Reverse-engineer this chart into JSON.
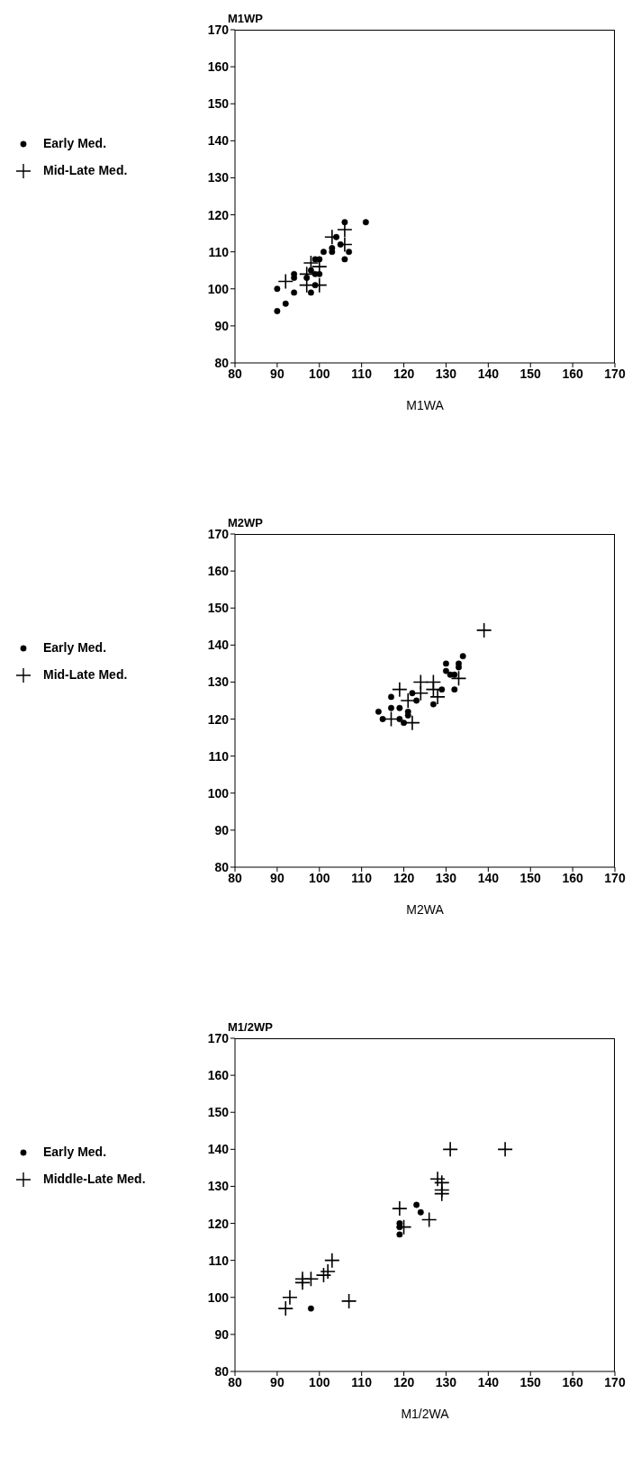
{
  "chart_data": [
    {
      "type": "scatter",
      "xlabel": "M1WA",
      "ylabel": "M1WP",
      "xlim": [
        80,
        170
      ],
      "ylim": [
        80,
        170
      ],
      "xticks": [
        80,
        90,
        100,
        110,
        120,
        130,
        140,
        150,
        160,
        170
      ],
      "yticks": [
        80,
        90,
        100,
        110,
        120,
        130,
        140,
        150,
        160,
        170
      ],
      "legend": "left",
      "series": [
        {
          "name": "Early Med.",
          "color": "#000000",
          "marker": "circle",
          "x": [
            90,
            90,
            92,
            94,
            94,
            94,
            98,
            98,
            97,
            99,
            100,
            99,
            99,
            100,
            101,
            103,
            103,
            104,
            105,
            106,
            106,
            107,
            111
          ],
          "values": [
            100,
            94,
            96,
            99,
            104,
            103,
            99,
            105,
            103,
            104,
            104,
            101,
            108,
            108,
            110,
            110,
            111,
            114,
            112,
            118,
            108,
            110,
            118
          ]
        },
        {
          "name": "Mid-Late Med.",
          "color": "#000000",
          "marker": "cross",
          "x": [
            92,
            97,
            97,
            98,
            100,
            100,
            103,
            106,
            106
          ],
          "values": [
            102,
            104,
            101,
            107,
            106,
            101,
            114,
            116,
            112
          ]
        }
      ]
    },
    {
      "type": "scatter",
      "xlabel": "M2WA",
      "ylabel": "M2WP",
      "xlim": [
        80,
        170
      ],
      "ylim": [
        80,
        170
      ],
      "xticks": [
        80,
        90,
        100,
        110,
        120,
        130,
        140,
        150,
        160,
        170
      ],
      "yticks": [
        80,
        90,
        100,
        110,
        120,
        130,
        140,
        150,
        160,
        170
      ],
      "legend": "left",
      "series": [
        {
          "name": "Early Med.",
          "color": "#000000",
          "marker": "circle",
          "x": [
            114,
            115,
            117,
            117,
            119,
            119,
            120,
            121,
            121,
            122,
            123,
            127,
            129,
            130,
            130,
            131,
            132,
            132,
            133,
            133,
            134
          ],
          "values": [
            122,
            120,
            126,
            123,
            123,
            120,
            119,
            122,
            121,
            127,
            125,
            124,
            128,
            135,
            133,
            132,
            132,
            128,
            135,
            134,
            137
          ]
        },
        {
          "name": "Mid-Late Med.",
          "color": "#000000",
          "marker": "cross",
          "x": [
            117,
            119,
            121,
            122,
            124,
            124,
            127,
            127,
            128,
            133,
            139
          ],
          "values": [
            120,
            128,
            125,
            119,
            130,
            127,
            130,
            128,
            126,
            131,
            144
          ]
        }
      ]
    },
    {
      "type": "scatter",
      "xlabel": "M1/2WA",
      "ylabel": "M1/2WP",
      "xlim": [
        80,
        170
      ],
      "ylim": [
        80,
        170
      ],
      "xticks": [
        80,
        90,
        100,
        110,
        120,
        130,
        140,
        150,
        160,
        170
      ],
      "yticks": [
        80,
        90,
        100,
        110,
        120,
        130,
        140,
        150,
        160,
        170
      ],
      "legend": "left",
      "series": [
        {
          "name": "Early Med.",
          "color": "#000000",
          "marker": "circle",
          "x": [
            98,
            119,
            119,
            119,
            123,
            124
          ],
          "values": [
            97,
            120,
            119,
            117,
            125,
            123
          ]
        },
        {
          "name": "Middle-Late Med.",
          "color": "#000000",
          "marker": "cross",
          "x": [
            92,
            93,
            96,
            96,
            98,
            101,
            102,
            103,
            107,
            119,
            120,
            126,
            128,
            129,
            129,
            129,
            131,
            144
          ],
          "values": [
            97,
            100,
            104,
            105,
            105,
            106,
            107,
            110,
            99,
            124,
            119,
            121,
            132,
            131,
            129,
            128,
            140,
            140
          ]
        }
      ]
    }
  ]
}
